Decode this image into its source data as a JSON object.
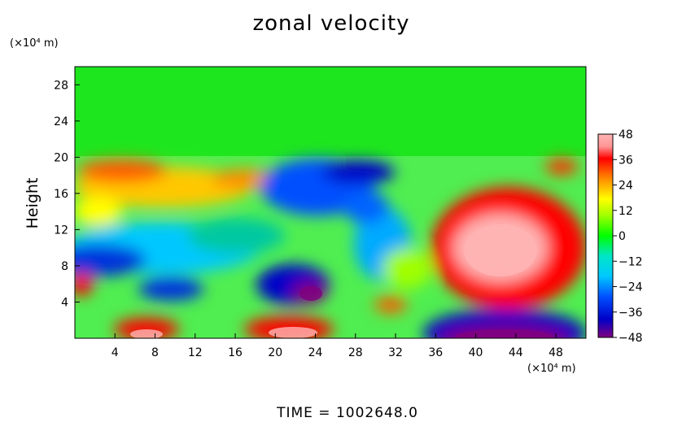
{
  "chart_data": {
    "type": "heatmap",
    "title": "zonal velocity",
    "ylabel": "Height",
    "xunit": "(×10⁴ m)",
    "yunit": "(×10⁴ m)",
    "footer": "TIME  =  1002648.0",
    "xlim": [
      0,
      51
    ],
    "ylim": [
      0,
      30
    ],
    "xticks": [
      4,
      8,
      12,
      16,
      20,
      24,
      28,
      32,
      36,
      40,
      44,
      48
    ],
    "yticks": [
      4,
      8,
      12,
      16,
      20,
      24,
      28
    ],
    "colorbar": {
      "min": -48,
      "max": 48,
      "ticks": [
        48,
        36,
        24,
        12,
        0,
        -12,
        -24,
        -36,
        -48
      ],
      "colors": [
        "#800080",
        "#0000c8",
        "#0050ff",
        "#00c8ff",
        "#00e6c8",
        "#00ff00",
        "#a0ff00",
        "#ffff00",
        "#ff8c00",
        "#ff0000",
        "#ff9696",
        "#ffb4b4"
      ]
    },
    "features": [
      {
        "x": 43,
        "y": 10,
        "u": 48
      },
      {
        "x": 24,
        "y": 5,
        "u": -48
      },
      {
        "x": 43,
        "y": 1,
        "u": -48
      },
      {
        "x": 8,
        "y": 0.5,
        "u": 40
      },
      {
        "x": 22,
        "y": 1,
        "u": 40
      },
      {
        "x": 4,
        "y": 8,
        "u": -30
      },
      {
        "x": 28,
        "y": 18,
        "u": -34
      },
      {
        "x": 34,
        "y": 16,
        "u": -30
      },
      {
        "x": 10,
        "y": 18,
        "u": 30
      },
      {
        "x": 38,
        "y": 8,
        "u": 24
      }
    ]
  }
}
